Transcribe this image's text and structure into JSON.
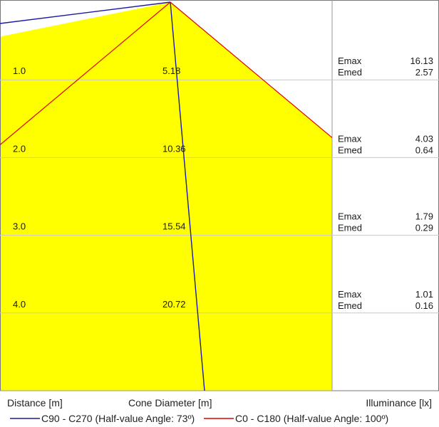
{
  "chart_data": {
    "type": "area",
    "rows": [
      {
        "distance": "1.0",
        "cone_diameter": "5.18",
        "emax": "16.13",
        "emed": "2.57"
      },
      {
        "distance": "2.0",
        "cone_diameter": "10.36",
        "emax": "4.03",
        "emed": "0.64"
      },
      {
        "distance": "3.0",
        "cone_diameter": "15.54",
        "emax": "1.79",
        "emed": "0.29"
      },
      {
        "distance": "4.0",
        "cone_diameter": "20.72",
        "emax": "1.01",
        "emed": "0.16"
      }
    ],
    "emax_label": "Emax",
    "emed_label": "Emed",
    "axis_labels": {
      "distance": "Distance [m]",
      "cone_diameter": "Cone Diameter [m]",
      "illuminance": "Illuminance [lx]"
    },
    "distance_max": 5.0,
    "series": [
      {
        "name": "C90 - C270 (Half-value Angle: 73º)",
        "color": "#1b1b9f",
        "half_value_angle": 73
      },
      {
        "name": "C0 - C180 (Half-value Angle: 100º)",
        "color": "#e00000",
        "half_value_angle": 100
      }
    ],
    "fill_color": "#ffff00",
    "grid": true
  }
}
